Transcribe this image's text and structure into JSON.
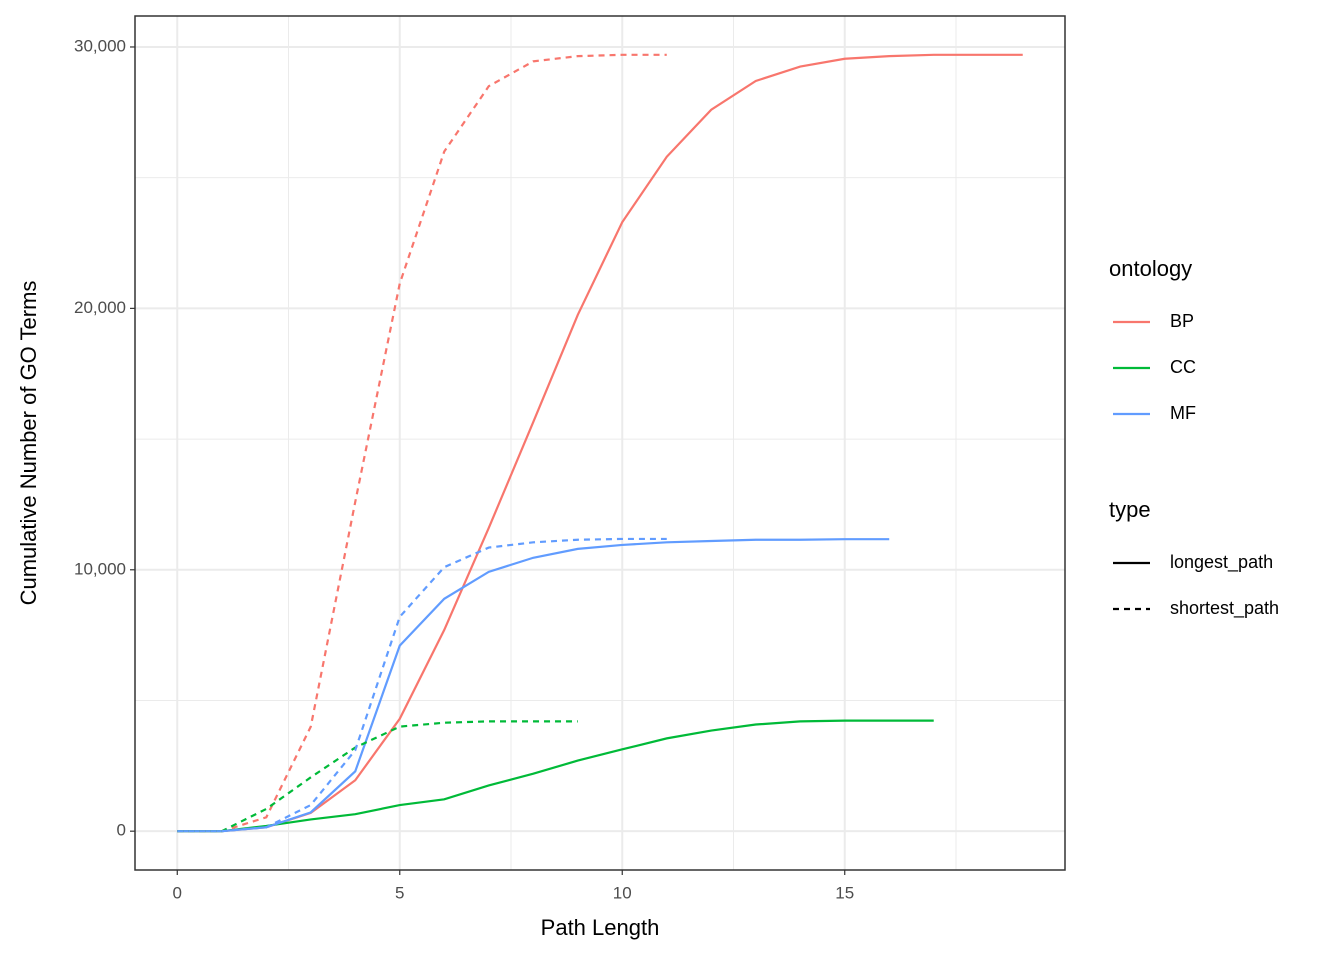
{
  "chart_data": {
    "type": "line",
    "x_label": "Path Length",
    "y_label": "Cumulative Number of GO Terms",
    "xlim": [
      -0.95,
      19.95
    ],
    "ylim": [
      -1485,
      31185
    ],
    "xticks": [
      0,
      5,
      10,
      15
    ],
    "yticks": [
      0,
      {
        "value": 10000,
        "label": "10,000"
      },
      {
        "value": 20000,
        "label": "20,000"
      },
      {
        "value": 30000,
        "label": "30,000"
      }
    ],
    "x_minor_ticks": [
      2.5,
      7.5,
      12.5,
      17.5
    ],
    "y_minor_ticks": [
      5000,
      15000,
      25000
    ],
    "grid": true,
    "legend_position": "right",
    "legends": [
      {
        "title": "ontology",
        "items": [
          {
            "label": "BP",
            "color": "#F8766D",
            "linestyle": "solid"
          },
          {
            "label": "CC",
            "color": "#00BA38",
            "linestyle": "solid"
          },
          {
            "label": "MF",
            "color": "#619CFF",
            "linestyle": "solid"
          }
        ]
      },
      {
        "title": "type",
        "items": [
          {
            "label": "longest_path",
            "color": "#000000",
            "linestyle": "solid"
          },
          {
            "label": "shortest_path",
            "color": "#000000",
            "linestyle": "dashed"
          }
        ]
      }
    ],
    "series": [
      {
        "color": "#F8766D",
        "linestyle": "solid",
        "x": [
          0,
          1,
          2,
          3,
          4,
          5,
          6,
          7,
          8,
          9,
          10,
          11,
          12,
          13,
          14,
          15,
          16,
          17,
          18,
          19
        ],
        "values": [
          0,
          0,
          150,
          700,
          1950,
          4300,
          7700,
          11600,
          15650,
          19750,
          23300,
          25800,
          27600,
          28700,
          29250,
          29550,
          29650,
          29700,
          29700,
          29700
        ]
      },
      {
        "color": "#00BA38",
        "linestyle": "solid",
        "x": [
          0,
          1,
          2,
          3,
          4,
          5,
          6,
          7,
          8,
          9,
          10,
          11,
          12,
          13,
          14,
          15,
          16,
          17
        ],
        "values": [
          0,
          0,
          200,
          450,
          650,
          1000,
          1220,
          1750,
          2200,
          2700,
          3130,
          3550,
          3850,
          4080,
          4200,
          4230,
          4230,
          4230
        ]
      },
      {
        "color": "#619CFF",
        "linestyle": "solid",
        "x": [
          0,
          1,
          2,
          3,
          4,
          5,
          6,
          7,
          8,
          9,
          10,
          11,
          12,
          13,
          14,
          15,
          16
        ],
        "values": [
          0,
          0,
          150,
          720,
          2290,
          7100,
          8890,
          9920,
          10460,
          10800,
          10950,
          11050,
          11100,
          11150,
          11150,
          11170,
          11170
        ]
      },
      {
        "color": "#F8766D",
        "linestyle": "dashed",
        "x": [
          0,
          1,
          2,
          3,
          4,
          5,
          6,
          7,
          8,
          9,
          10,
          11
        ],
        "values": [
          0,
          0,
          530,
          4000,
          12600,
          20950,
          26000,
          28500,
          29450,
          29650,
          29700,
          29700
        ]
      },
      {
        "color": "#00BA38",
        "linestyle": "dashed",
        "x": [
          0,
          1,
          2,
          3,
          4,
          5,
          6,
          7,
          8,
          9
        ],
        "values": [
          0,
          0,
          850,
          2060,
          3200,
          4000,
          4150,
          4200,
          4200,
          4200
        ]
      },
      {
        "color": "#619CFF",
        "linestyle": "dashed",
        "x": [
          0,
          1,
          2,
          3,
          4,
          5,
          6,
          7,
          8,
          9,
          10,
          11
        ],
        "values": [
          0,
          0,
          150,
          1000,
          3100,
          8200,
          10100,
          10850,
          11050,
          11150,
          11180,
          11180
        ]
      }
    ]
  }
}
